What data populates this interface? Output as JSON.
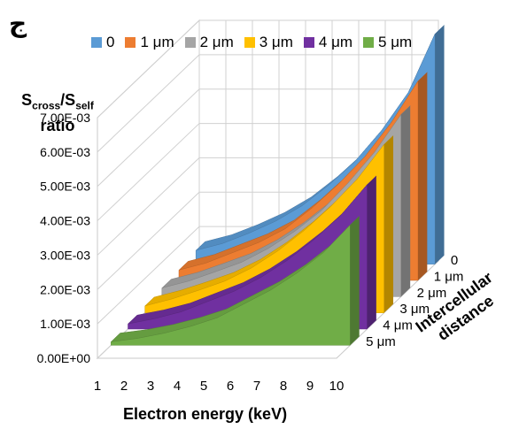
{
  "corner_label": "ج",
  "chart_data": {
    "type": "area",
    "title": "",
    "ylabel": {
      "main": "S",
      "sub1": "cross",
      "sep": "/S",
      "sub2": "self",
      "line2": "ratio"
    },
    "xlabel": "Electron energy (keV)",
    "zlabel": "Intercellular distance",
    "x": [
      1,
      2,
      3,
      4,
      5,
      6,
      7,
      8,
      9,
      10
    ],
    "x_tick_labels": [
      "1",
      "2",
      "3",
      "4",
      "5",
      "6",
      "7",
      "8",
      "9",
      "10"
    ],
    "y_tick_labels": [
      "0.00E+00",
      "1.00E-03",
      "2.00E-03",
      "3.00E-03",
      "4.00E-03",
      "5.00E-03",
      "6.00E-03",
      "7.00E-03"
    ],
    "ylim": [
      0,
      0.007
    ],
    "legend_position": "top",
    "grid": true,
    "series": [
      {
        "name": "0",
        "color": "#5b9bd5",
        "values": [
          0.0004,
          0.0006,
          0.0009,
          0.00125,
          0.0017,
          0.0023,
          0.003,
          0.0039,
          0.005,
          0.0067
        ]
      },
      {
        "name": "1 μm",
        "color": "#ed7d31",
        "values": [
          0.0003,
          0.0005,
          0.0008,
          0.0011,
          0.0015,
          0.0021,
          0.0028,
          0.0036,
          0.0046,
          0.0058
        ]
      },
      {
        "name": "2 μm",
        "color": "#a5a5a5",
        "values": [
          0.00025,
          0.00045,
          0.00072,
          0.001,
          0.0014,
          0.0019,
          0.0025,
          0.0033,
          0.0042,
          0.0053
        ]
      },
      {
        "name": "3 μm",
        "color": "#ffc000",
        "values": [
          0.0002,
          0.0004,
          0.00065,
          0.00092,
          0.0013,
          0.0018,
          0.0024,
          0.0031,
          0.0039,
          0.0049
        ]
      },
      {
        "name": "4 μm",
        "color": "#7030a0",
        "values": [
          0.00015,
          0.0003,
          0.0005,
          0.0008,
          0.0011,
          0.0015,
          0.002,
          0.0026,
          0.0033,
          0.0042
        ]
      },
      {
        "name": "5 μm",
        "color": "#70ad47",
        "values": [
          0.0001,
          0.0002,
          0.00035,
          0.00055,
          0.0008,
          0.0012,
          0.0016,
          0.0021,
          0.0027,
          0.0035
        ]
      }
    ]
  }
}
